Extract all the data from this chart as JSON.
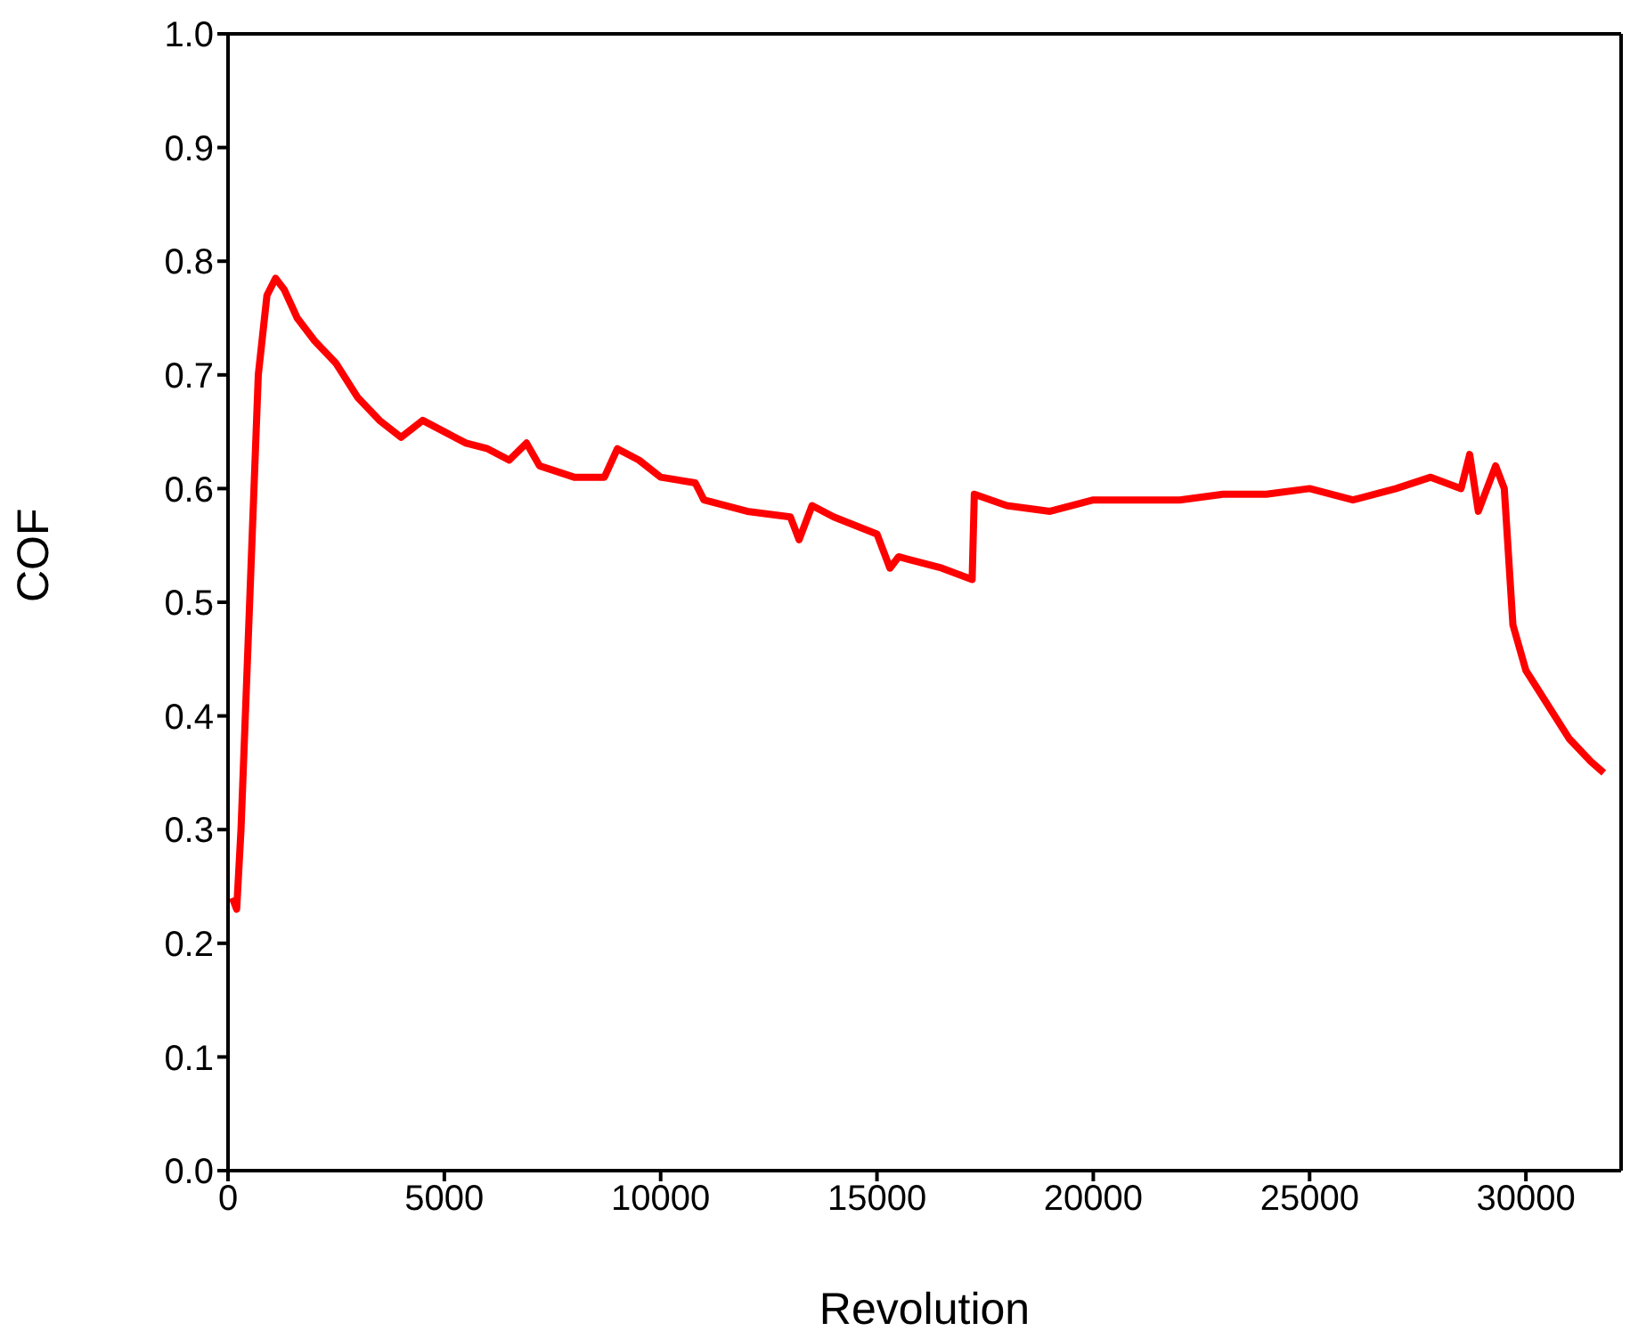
{
  "chart_data": {
    "type": "line",
    "xlabel": "Revolution",
    "ylabel": "COF",
    "x": [
      100,
      200,
      300,
      500,
      700,
      900,
      1100,
      1300,
      1600,
      2000,
      2500,
      3000,
      3500,
      4000,
      4500,
      5000,
      5500,
      6000,
      6500,
      6900,
      7200,
      8000,
      8700,
      9000,
      9500,
      10000,
      10800,
      11000,
      12000,
      13000,
      13200,
      13500,
      14000,
      15000,
      15300,
      15500,
      16500,
      17200,
      17250,
      18000,
      19000,
      20000,
      22000,
      23000,
      24000,
      25000,
      26000,
      27000,
      27800,
      28500,
      28700,
      28900,
      29300,
      29500,
      29700,
      30000,
      30500,
      31000,
      31500,
      31800
    ],
    "series": [
      {
        "color": "#ff0000",
        "values": [
          0.24,
          0.23,
          0.3,
          0.5,
          0.7,
          0.77,
          0.785,
          0.775,
          0.75,
          0.73,
          0.71,
          0.68,
          0.66,
          0.645,
          0.66,
          0.65,
          0.64,
          0.635,
          0.625,
          0.64,
          0.62,
          0.61,
          0.61,
          0.635,
          0.625,
          0.61,
          0.605,
          0.59,
          0.58,
          0.575,
          0.555,
          0.585,
          0.575,
          0.56,
          0.53,
          0.54,
          0.53,
          0.52,
          0.595,
          0.585,
          0.58,
          0.59,
          0.59,
          0.595,
          0.595,
          0.6,
          0.59,
          0.6,
          0.61,
          0.6,
          0.63,
          0.58,
          0.62,
          0.6,
          0.48,
          0.44,
          0.41,
          0.38,
          0.36,
          0.35
        ]
      }
    ],
    "xlim": [
      0,
      32200
    ],
    "xticks": [
      0,
      5000,
      10000,
      15000,
      20000,
      25000,
      30000
    ],
    "ylim": [
      0,
      1
    ],
    "yticks": [
      {
        "value": 0,
        "label": "0.0"
      },
      0.1,
      0.2,
      0.3,
      0.4,
      0.5,
      0.6,
      0.7,
      0.8,
      0.9,
      {
        "value": 1,
        "label": "1.0"
      }
    ],
    "grid": false,
    "marker": "none",
    "line_style": "solid",
    "legend": false
  }
}
